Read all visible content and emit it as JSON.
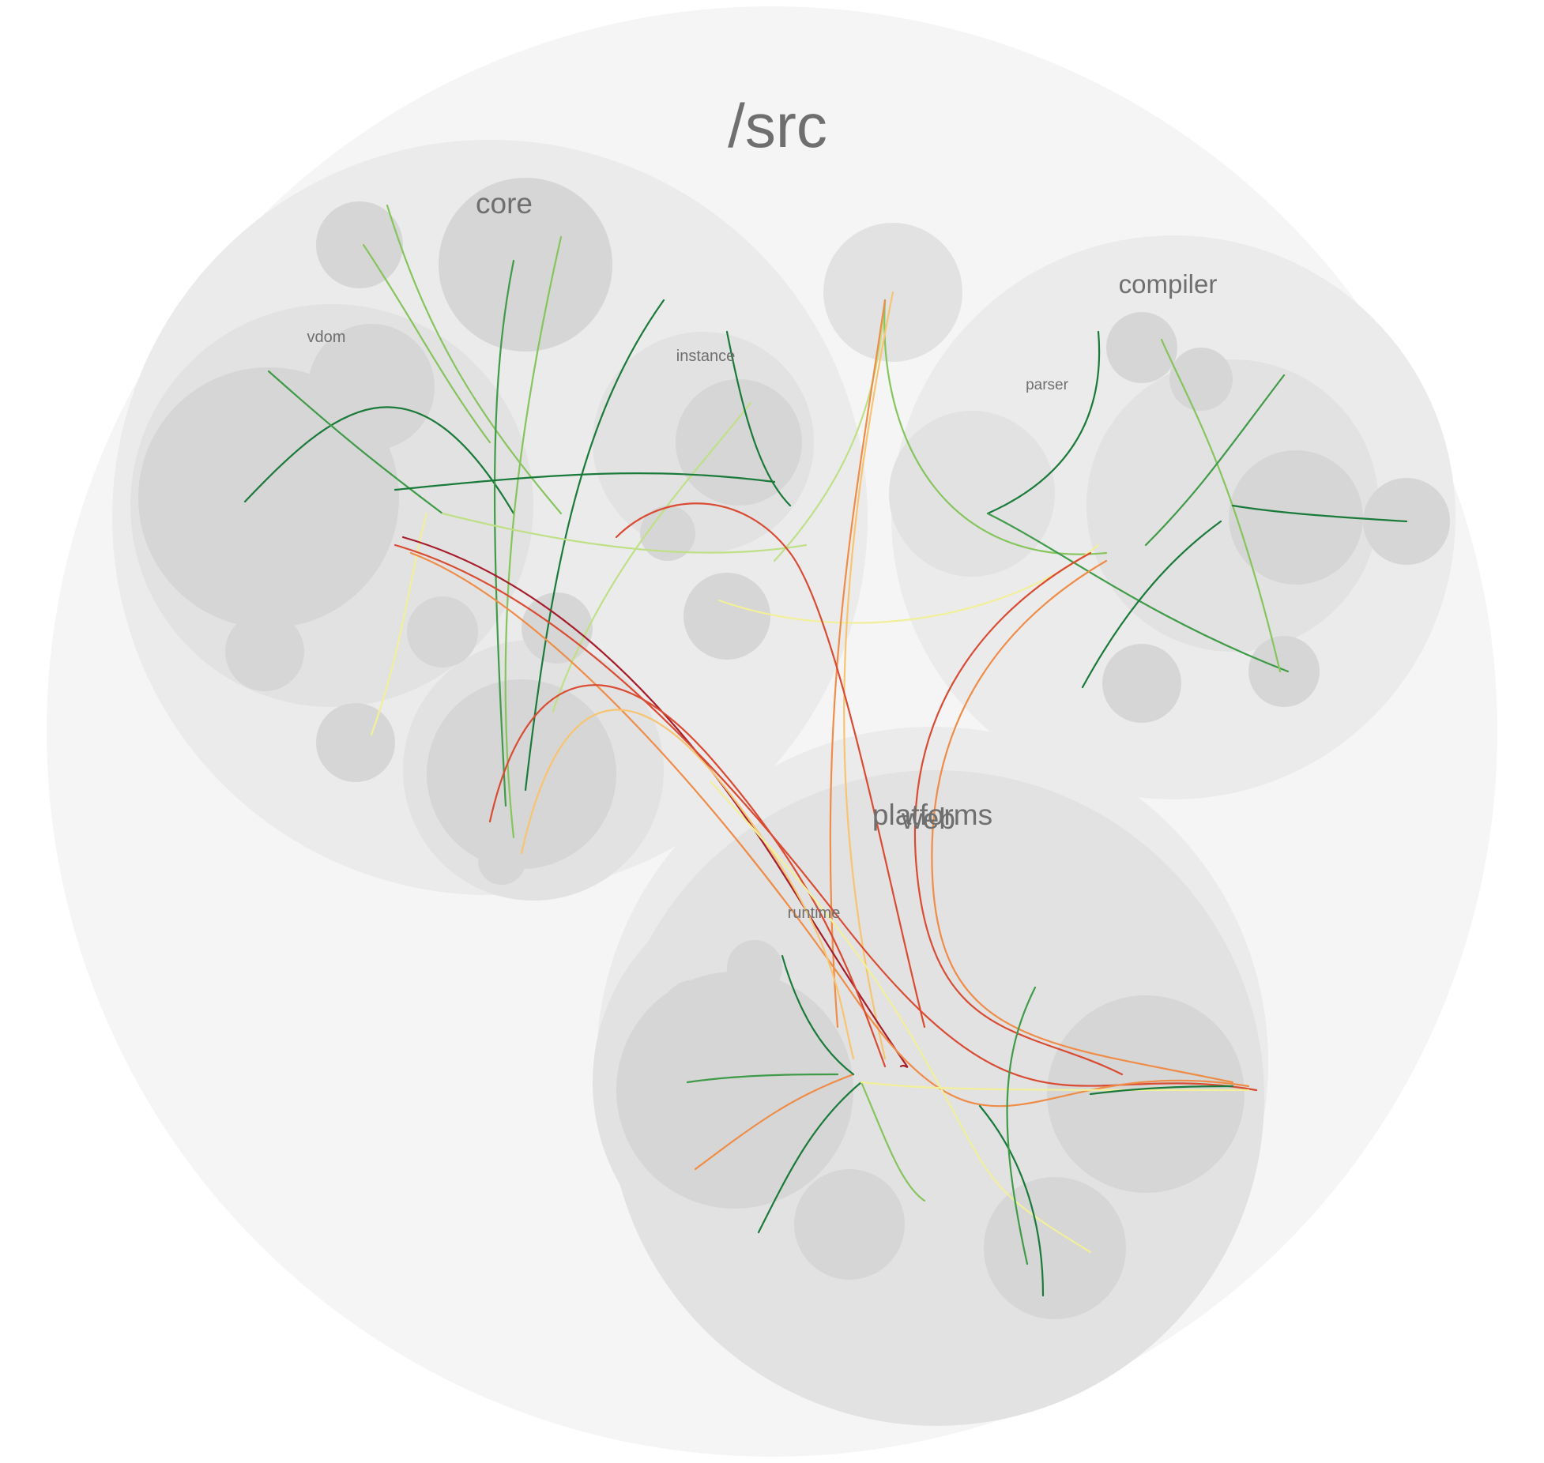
{
  "diagram": {
    "type": "circle-packing hierarchical edge bundling",
    "root": {
      "label": "/src"
    },
    "groups": {
      "core": {
        "label": "core",
        "children": {
          "vdom": "vdom",
          "instance": "instance"
        }
      },
      "compiler": {
        "label": "compiler",
        "children": {
          "parser": "parser"
        }
      },
      "platforms": {
        "label": "platforms",
        "children": {
          "web": "web",
          "runtime": "runtime"
        }
      }
    },
    "colors": {
      "background": "#ffffff",
      "root_fill": "#f5f5f5",
      "group_fill": "#ebebeb",
      "subgroup_fill": "#e2e2e2",
      "leaf_fill": "#d6d6d6",
      "label": "#6f6f6f"
    },
    "edge_palette": [
      "#1a7a3a",
      "#3f9b48",
      "#86c45c",
      "#bfe087",
      "#f2ef9a",
      "#f7c472",
      "#ef8c47",
      "#d94b32",
      "#a61c2a"
    ]
  }
}
